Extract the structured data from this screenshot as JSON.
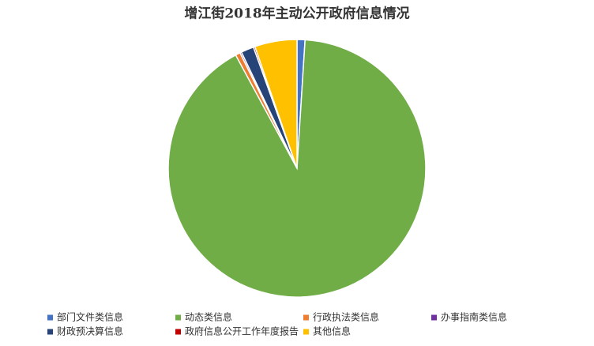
{
  "chart_data": {
    "type": "pie",
    "title": "增江街2018年主动公开政府信息情况",
    "categories": [
      "部门文件类信息",
      "动态类信息",
      "行政执法类信息",
      "办事指南类信息",
      "财政预决算信息",
      "政府信息公开工作年度报告",
      "其他信息"
    ],
    "values": [
      1.0,
      91.1,
      0.6,
      0.2,
      1.6,
      0.2,
      5.3
    ],
    "colors": [
      "#4472c4",
      "#70ad47",
      "#ed7d31",
      "#7030a0",
      "#264478",
      "#c00000",
      "#ffc000"
    ],
    "legend": "bottom"
  }
}
